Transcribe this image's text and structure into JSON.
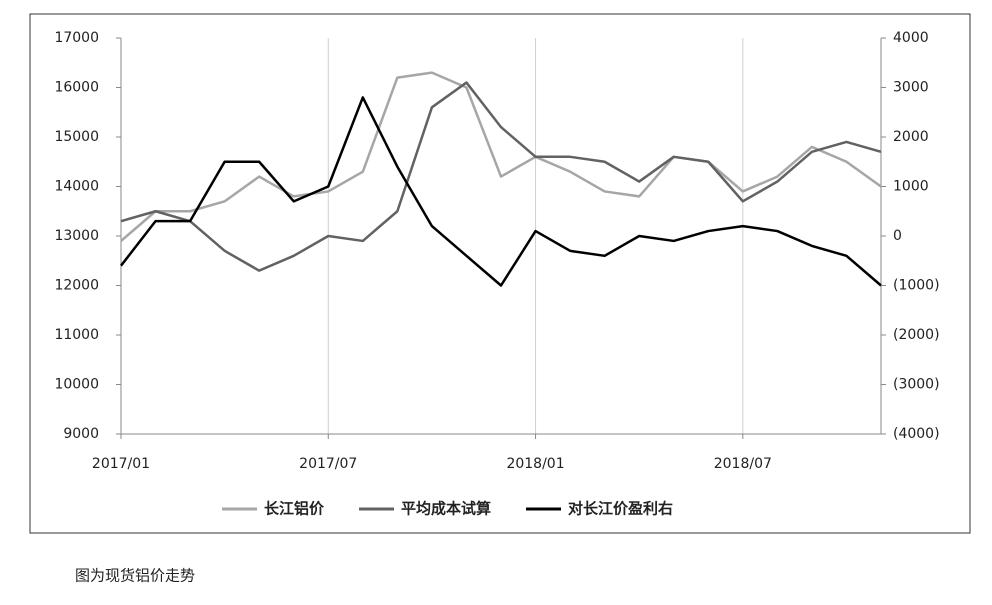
{
  "chart_data": {
    "type": "line",
    "caption": "图为现货铝价走势",
    "x": [
      "2017/01",
      "2017/02",
      "2017/03",
      "2017/04",
      "2017/05",
      "2017/06",
      "2017/07",
      "2017/08",
      "2017/09",
      "2017/10",
      "2017/11",
      "2017/12",
      "2018/01",
      "2018/02",
      "2018/03",
      "2018/04",
      "2018/05",
      "2018/06",
      "2018/07",
      "2018/08",
      "2018/09",
      "2018/10",
      "2018/11"
    ],
    "xlim": [
      "2017/01",
      "2018/11"
    ],
    "xticks": [
      "2017/01",
      "2017/07",
      "2018/01",
      "2018/07"
    ],
    "ylim": [
      9000,
      17000
    ],
    "yticks": [
      9000,
      10000,
      11000,
      12000,
      13000,
      14000,
      15000,
      16000,
      17000
    ],
    "y2lim": [
      -4000,
      4000
    ],
    "y2ticks": [
      {
        "value": -4000,
        "label": "(4000)"
      },
      {
        "value": -3000,
        "label": "(3000)"
      },
      {
        "value": -2000,
        "label": "(2000)"
      },
      {
        "value": -1000,
        "label": "(1000)"
      },
      0,
      1000,
      2000,
      3000,
      4000
    ],
    "grid": "x",
    "legend": "bottom",
    "series": [
      {
        "name": "长江铝价",
        "color": "#a6a6a6",
        "values": [
          12900,
          13500,
          13500,
          13700,
          14200,
          13800,
          13900,
          14300,
          16200,
          16300,
          16000,
          14200,
          14600,
          14300,
          13900,
          13800,
          14600,
          14500,
          13900,
          14200,
          14800,
          14500,
          14000
        ]
      },
      {
        "name": "平均成本试算",
        "color": "#626262",
        "values": [
          13300,
          13500,
          13300,
          12700,
          12300,
          12600,
          13000,
          12900,
          13500,
          15600,
          16100,
          15200,
          14600,
          14600,
          14500,
          14100,
          14600,
          14500,
          13700,
          14100,
          14700,
          14900,
          14700
        ]
      },
      {
        "name": "对长江价盈利右",
        "color": "#000000",
        "axis": "y2",
        "values": [
          -600,
          300,
          300,
          1500,
          1500,
          700,
          1000,
          2800,
          1400,
          200,
          -400,
          -1000,
          100,
          -300,
          -400,
          0,
          -100,
          100,
          200,
          100,
          -200,
          -400,
          -1000
        ]
      }
    ]
  }
}
